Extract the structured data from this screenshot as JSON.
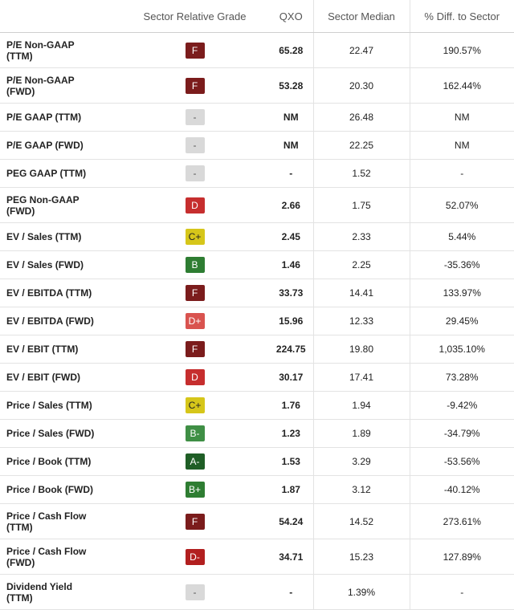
{
  "headers": {
    "metric": "",
    "grade": "Sector Relative Grade",
    "ticker": "QXO",
    "median": "Sector Median",
    "diff": "% Diff. to Sector"
  },
  "rows": [
    {
      "metric": "P/E Non-GAAP\n(TTM)",
      "grade": "F",
      "qxo": "65.28",
      "median": "22.47",
      "diff": "190.57%"
    },
    {
      "metric": "P/E Non-GAAP\n(FWD)",
      "grade": "F",
      "qxo": "53.28",
      "median": "20.30",
      "diff": "162.44%"
    },
    {
      "metric": "P/E GAAP (TTM)",
      "grade": "-",
      "qxo": "NM",
      "median": "26.48",
      "diff": "NM"
    },
    {
      "metric": "P/E GAAP (FWD)",
      "grade": "-",
      "qxo": "NM",
      "median": "22.25",
      "diff": "NM"
    },
    {
      "metric": "PEG GAAP (TTM)",
      "grade": "-",
      "qxo": "-",
      "median": "1.52",
      "diff": "-"
    },
    {
      "metric": "PEG Non-GAAP\n(FWD)",
      "grade": "D",
      "qxo": "2.66",
      "median": "1.75",
      "diff": "52.07%"
    },
    {
      "metric": "EV / Sales (TTM)",
      "grade": "C+",
      "qxo": "2.45",
      "median": "2.33",
      "diff": "5.44%"
    },
    {
      "metric": "EV / Sales (FWD)",
      "grade": "B",
      "qxo": "1.46",
      "median": "2.25",
      "diff": "-35.36%"
    },
    {
      "metric": "EV / EBITDA (TTM)",
      "grade": "F",
      "qxo": "33.73",
      "median": "14.41",
      "diff": "133.97%"
    },
    {
      "metric": "EV / EBITDA (FWD)",
      "grade": "D+",
      "qxo": "15.96",
      "median": "12.33",
      "diff": "29.45%"
    },
    {
      "metric": "EV / EBIT (TTM)",
      "grade": "F",
      "qxo": "224.75",
      "median": "19.80",
      "diff": "1,035.10%"
    },
    {
      "metric": "EV / EBIT (FWD)",
      "grade": "D",
      "qxo": "30.17",
      "median": "17.41",
      "diff": "73.28%"
    },
    {
      "metric": "Price / Sales (TTM)",
      "grade": "C+",
      "qxo": "1.76",
      "median": "1.94",
      "diff": "-9.42%"
    },
    {
      "metric": "Price / Sales (FWD)",
      "grade": "B-",
      "qxo": "1.23",
      "median": "1.89",
      "diff": "-34.79%"
    },
    {
      "metric": "Price / Book (TTM)",
      "grade": "A-",
      "qxo": "1.53",
      "median": "3.29",
      "diff": "-53.56%"
    },
    {
      "metric": "Price / Book (FWD)",
      "grade": "B+",
      "qxo": "1.87",
      "median": "3.12",
      "diff": "-40.12%"
    },
    {
      "metric": "Price / Cash Flow\n(TTM)",
      "grade": "F",
      "qxo": "54.24",
      "median": "14.52",
      "diff": "273.61%"
    },
    {
      "metric": "Price / Cash Flow\n(FWD)",
      "grade": "D-",
      "qxo": "34.71",
      "median": "15.23",
      "diff": "127.89%"
    },
    {
      "metric": "Dividend Yield\n(TTM)",
      "grade": "-",
      "qxo": "-",
      "median": "1.39%",
      "diff": "-"
    }
  ]
}
